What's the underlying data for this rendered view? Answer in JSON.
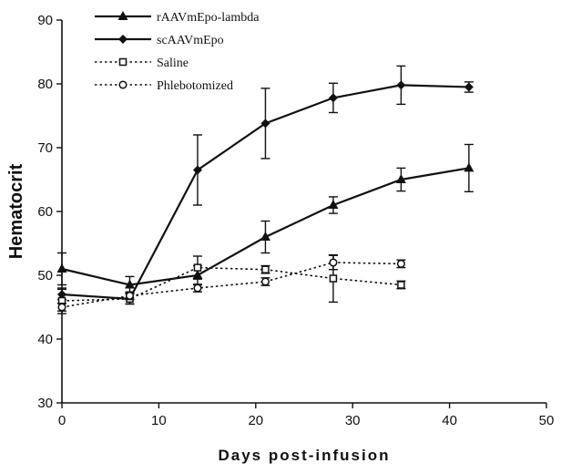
{
  "chart_data": {
    "type": "line",
    "title": "",
    "xlabel": "Days post-infusion",
    "ylabel": "Hematocrit",
    "xlim": [
      0,
      50
    ],
    "ylim": [
      30,
      90
    ],
    "xticks": [
      0,
      10,
      20,
      30,
      40,
      50
    ],
    "yticks": [
      30,
      40,
      50,
      60,
      70,
      80,
      90
    ],
    "grid": false,
    "legend_position": "top-left",
    "series": [
      {
        "name": "rAAVmEpo-lambda",
        "line": "solid",
        "marker": "triangle",
        "x": [
          0,
          7,
          14,
          21,
          28,
          35,
          42
        ],
        "y": [
          51,
          48.5,
          50,
          56,
          61,
          65,
          66.8
        ],
        "err": [
          2.5,
          1.3,
          1.5,
          2.5,
          1.3,
          1.8,
          3.7
        ]
      },
      {
        "name": "scAAVmEpo",
        "line": "solid",
        "marker": "diamond",
        "x": [
          0,
          7,
          14,
          21,
          28,
          35,
          42
        ],
        "y": [
          47,
          46.3,
          66.5,
          73.8,
          77.8,
          79.8,
          79.5
        ],
        "err": [
          0.8,
          0.8,
          5.5,
          5.5,
          2.3,
          3,
          0.8
        ]
      },
      {
        "name": "Saline",
        "line": "dotted",
        "marker": "square",
        "x": [
          0,
          7,
          14,
          21,
          28,
          35
        ],
        "y": [
          46,
          46.3,
          51.2,
          50.9,
          49.5,
          48.5
        ],
        "err": [
          2,
          0.8,
          1.8,
          0.6,
          3.7,
          0.6
        ]
      },
      {
        "name": "Phlebotomized",
        "line": "dotted",
        "marker": "circle",
        "x": [
          0,
          7,
          14,
          21,
          28,
          35
        ],
        "y": [
          45,
          46.8,
          48,
          49,
          52,
          51.8
        ],
        "err": [
          0.6,
          0.6,
          0.6,
          0.6,
          1.1,
          0.6
        ]
      }
    ]
  }
}
